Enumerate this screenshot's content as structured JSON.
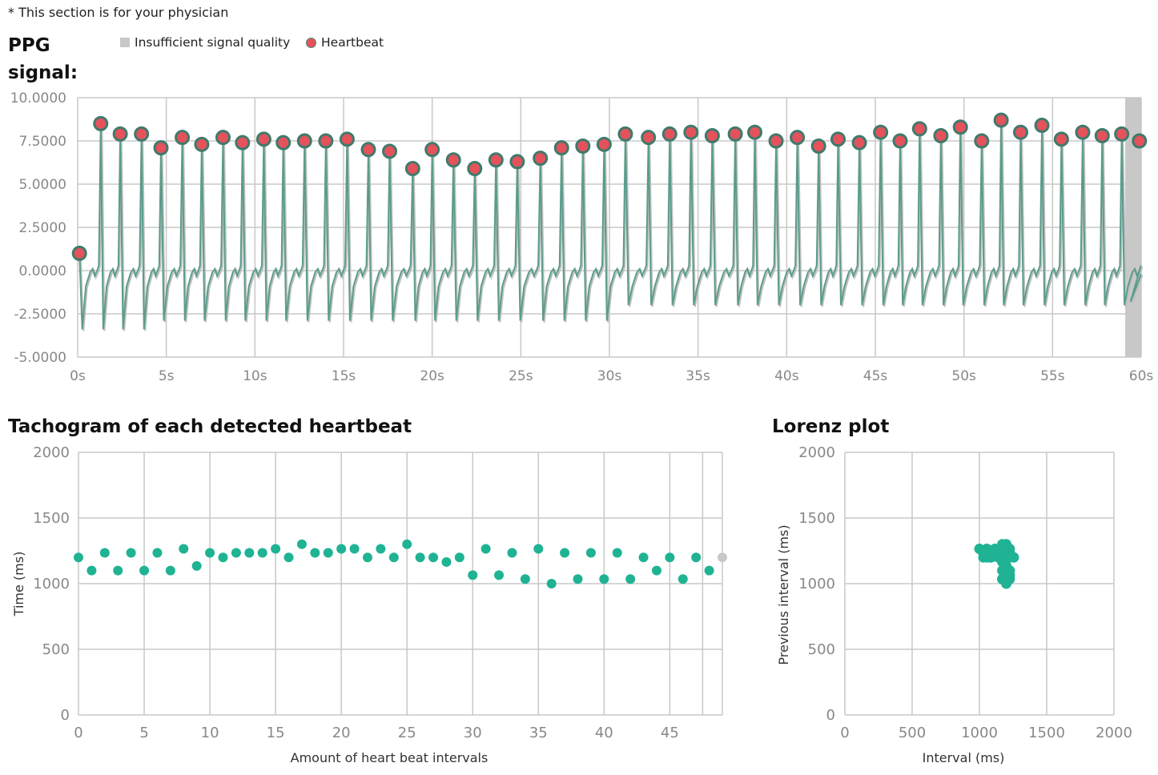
{
  "note": "* This section is for your physician",
  "ppg": {
    "title": "PPG signal:",
    "legend_insufficient": "Insufficient signal quality",
    "legend_heartbeat": "Heartbeat"
  },
  "tachogram": {
    "title": "Tachogram of each detected heartbeat"
  },
  "lorenz": {
    "title": "Lorenz plot"
  },
  "colors": {
    "signal_line": "#5b9c8c",
    "heartbeat_fill": "#e4525c",
    "heartbeat_stroke": "#3f7a6c",
    "point": "#1fb394",
    "grey_region": "#c8c8c8",
    "grid": "#c8c8c8"
  },
  "chart_data": [
    {
      "type": "line",
      "title": "PPG signal:",
      "xlabel": "",
      "ylabel": "",
      "xlim": [
        0,
        60
      ],
      "ylim": [
        -5,
        10
      ],
      "x_ticks": [
        "0s",
        "5s",
        "10s",
        "15s",
        "20s",
        "25s",
        "30s",
        "35s",
        "40s",
        "45s",
        "50s",
        "55s",
        "60s"
      ],
      "y_ticks": [
        "10.0000",
        "7.5000",
        "5.0000",
        "2.5000",
        "0.0000",
        "-2.5000",
        "-5.0000"
      ],
      "grid": true,
      "insufficient_signal_region": [
        59.1,
        60
      ],
      "heartbeats": {
        "name": "Heartbeat",
        "t": [
          0.1,
          1.3,
          2.4,
          3.6,
          4.7,
          5.9,
          7.0,
          8.2,
          9.3,
          10.5,
          11.6,
          12.8,
          14.0,
          15.2,
          16.4,
          17.6,
          18.9,
          20.0,
          21.2,
          22.4,
          23.6,
          24.8,
          26.1,
          27.3,
          28.5,
          29.7,
          30.9,
          32.2,
          33.4,
          34.6,
          35.8,
          37.1,
          38.2,
          39.4,
          40.6,
          41.8,
          42.9,
          44.1,
          45.3,
          46.4,
          47.5,
          48.7,
          49.8,
          51.0,
          52.1,
          53.2,
          54.4,
          55.5,
          56.7,
          57.8,
          58.9,
          60.1
        ],
        "v": [
          1.0,
          8.5,
          7.9,
          7.9,
          7.1,
          7.7,
          7.3,
          7.7,
          7.4,
          7.6,
          7.4,
          7.5,
          7.5,
          7.6,
          7.0,
          6.9,
          5.9,
          7.0,
          6.4,
          5.9,
          6.4,
          6.3,
          6.5,
          7.1,
          7.2,
          7.3,
          7.9,
          7.7,
          7.9,
          8.0,
          7.8,
          7.9,
          8.0,
          7.5,
          7.7,
          7.2,
          7.6,
          7.4,
          8.0,
          7.5,
          8.2,
          7.8,
          8.3,
          7.5,
          8.7,
          8.0,
          8.4,
          7.6,
          8.0,
          7.8,
          7.9,
          7.5
        ]
      }
    },
    {
      "type": "scatter",
      "title": "Tachogram of each detected heartbeat",
      "xlabel": "Amount of heart beat intervals",
      "ylabel": "Time (ms)",
      "xlim": [
        0,
        49
      ],
      "ylim": [
        0,
        2000
      ],
      "x_ticks": [
        "0",
        "5",
        "10",
        "15",
        "20",
        "25",
        "30",
        "35",
        "40",
        "45"
      ],
      "y_ticks": [
        "2000",
        "1500",
        "1000",
        "500",
        "0"
      ],
      "grid": true,
      "x": [
        0,
        1,
        2,
        3,
        4,
        5,
        6,
        7,
        8,
        9,
        10,
        11,
        12,
        13,
        14,
        15,
        16,
        17,
        18,
        19,
        20,
        21,
        22,
        23,
        24,
        25,
        26,
        27,
        28,
        29,
        30,
        31,
        32,
        33,
        34,
        35,
        36,
        37,
        38,
        39,
        40,
        41,
        42,
        43,
        44,
        45,
        46,
        47,
        48,
        49
      ],
      "values": [
        1200,
        1100,
        1235,
        1100,
        1235,
        1100,
        1235,
        1100,
        1265,
        1135,
        1235,
        1200,
        1235,
        1235,
        1235,
        1265,
        1200,
        1300,
        1235,
        1235,
        1265,
        1265,
        1200,
        1265,
        1200,
        1300,
        1200,
        1200,
        1165,
        1200,
        1065,
        1265,
        1065,
        1235,
        1035,
        1265,
        1000,
        1235,
        1035,
        1235,
        1035,
        1235,
        1035,
        1200,
        1100,
        1200,
        1035,
        1200,
        1100,
        1200
      ],
      "excluded_index": 49
    },
    {
      "type": "scatter",
      "title": "Lorenz plot",
      "xlabel": "Interval (ms)",
      "ylabel": "Previous interval (ms)",
      "xlim": [
        0,
        2000
      ],
      "ylim": [
        0,
        2000
      ],
      "x_ticks": [
        "0",
        "500",
        "1000",
        "1500",
        "2000"
      ],
      "y_ticks": [
        "2000",
        "1500",
        "1000",
        "500",
        "0"
      ],
      "grid": true
    }
  ]
}
